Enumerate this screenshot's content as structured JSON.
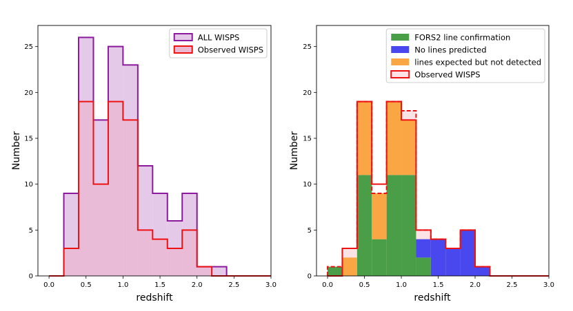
{
  "chart_data": [
    {
      "type": "histogram",
      "title": "",
      "xlabel": "redshift",
      "ylabel": "Number",
      "xlim": [
        -0.15,
        3.0
      ],
      "ylim": [
        0,
        27.3
      ],
      "xticks": [
        "0.0",
        "0.5",
        "1.0",
        "1.5",
        "2.0",
        "2.5",
        "3.0"
      ],
      "xtick_values": [
        0,
        0.5,
        1.0,
        1.5,
        2.0,
        2.5,
        3.0
      ],
      "yticks": [
        "0",
        "5",
        "10",
        "15",
        "20",
        "25"
      ],
      "ytick_values": [
        0,
        5,
        10,
        15,
        20,
        25
      ],
      "bin_edges": [
        0,
        0.2,
        0.4,
        0.6,
        0.8,
        1.0,
        1.2,
        1.4,
        1.6,
        1.8,
        2.0,
        2.2,
        2.4,
        2.6,
        2.8,
        3.0
      ],
      "legend_position": "top-right",
      "series": [
        {
          "name": "ALL WISPS",
          "counts": [
            0,
            9,
            26,
            17,
            25,
            23,
            12,
            9,
            6,
            9,
            1,
            1,
            0,
            0,
            0
          ],
          "fill": "#e4c9e8",
          "edge": "#8a1a9b",
          "dashed": false
        },
        {
          "name": "Observed WISPS",
          "counts": [
            0,
            3,
            19,
            10,
            19,
            17,
            5,
            4,
            3,
            5,
            1,
            0,
            0,
            0,
            0
          ],
          "fill": "#ebb8d2",
          "edge": "#ee1111",
          "dashed": false
        }
      ]
    },
    {
      "type": "histogram",
      "title": "",
      "xlabel": "redshift",
      "ylabel": "Number",
      "xlim": [
        -0.15,
        3.0
      ],
      "ylim": [
        0,
        27.3
      ],
      "xticks": [
        "0.0",
        "0.5",
        "1.0",
        "1.5",
        "2.0",
        "2.5",
        "3.0"
      ],
      "xtick_values": [
        0,
        0.5,
        1.0,
        1.5,
        2.0,
        2.5,
        3.0
      ],
      "yticks": [
        "0",
        "5",
        "10",
        "15",
        "20",
        "25"
      ],
      "ytick_values": [
        0,
        5,
        10,
        15,
        20,
        25
      ],
      "bin_edges": [
        0,
        0.2,
        0.4,
        0.6,
        0.8,
        1.0,
        1.2,
        1.4,
        1.6,
        1.8,
        2.0,
        2.2,
        2.4,
        2.6,
        2.8,
        3.0
      ],
      "legend_position": "top-right",
      "stacked": true,
      "stacked_series": [
        {
          "name": "FORS2 line confirmation",
          "counts": [
            1,
            0,
            11,
            4,
            11,
            11,
            2,
            0,
            0,
            0,
            0,
            0,
            0,
            0,
            0
          ],
          "color": "#4a9e48"
        },
        {
          "name": "No lines predicted",
          "counts": [
            0,
            0,
            0,
            0,
            0,
            0,
            2,
            4,
            3,
            5,
            1,
            0,
            0,
            0,
            0
          ],
          "color": "#4848ee"
        },
        {
          "name": "lines expected but not detected",
          "counts": [
            0,
            2,
            8,
            5,
            8,
            6,
            0,
            0,
            0,
            0,
            0,
            0,
            0,
            0,
            0
          ],
          "color": "#fba644"
        }
      ],
      "outline_series": [
        {
          "name": "Observed WISPS",
          "solid_counts": [
            0,
            3,
            19,
            10,
            19,
            17,
            5,
            4,
            3,
            5,
            1,
            0,
            0,
            0,
            0
          ],
          "dashed_counts": [
            1,
            3,
            19,
            9,
            19,
            18,
            5,
            4,
            3,
            5,
            1,
            0,
            0,
            0,
            0
          ],
          "edge": "#ee1111",
          "fill": "#fbe3e6"
        }
      ]
    }
  ]
}
